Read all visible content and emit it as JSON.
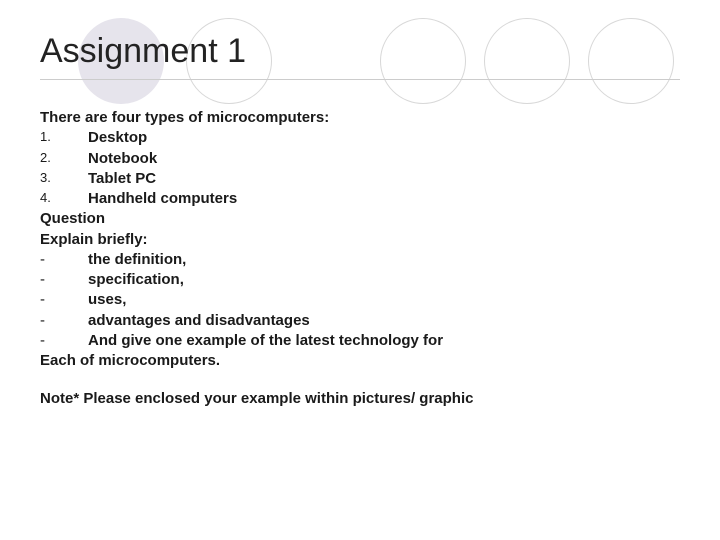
{
  "title": "Assignment 1",
  "intro": "There are four types of microcomputers:",
  "types": [
    {
      "marker": "1.",
      "label": "Desktop"
    },
    {
      "marker": "2.",
      "label": "Notebook"
    },
    {
      "marker": "3.",
      "label": "Tablet PC"
    },
    {
      "marker": "4.",
      "label": "Handheld computers"
    }
  ],
  "question_label": "Question",
  "explain_label": "Explain briefly:",
  "bullets": [
    {
      "marker": "-",
      "label": "the definition,"
    },
    {
      "marker": "-",
      "label": "specification,"
    },
    {
      "marker": "-",
      "label": "uses,"
    },
    {
      "marker": "-",
      "label": "advantages and disadvantages"
    },
    {
      "marker": "-",
      "label": "And give one example of the latest technology for"
    }
  ],
  "closing": "Each of microcomputers.",
  "note": "Note* Please enclosed your example within pictures/ graphic",
  "colors": {
    "filled_circle": "#e6e4ec",
    "circle_border": "#d8d8d8",
    "text": "#1a1a1a",
    "divider": "#cccccc",
    "background": "#ffffff"
  }
}
